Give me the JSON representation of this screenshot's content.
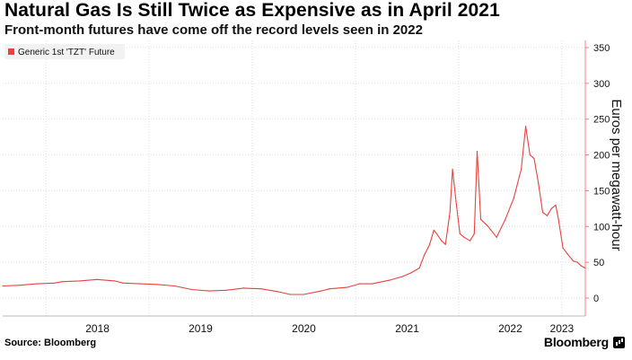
{
  "header": {
    "title": "Natural Gas Is Still Twice as Expensive as in April 2021",
    "subtitle": "Front-month futures have come off the record levels seen in 2022"
  },
  "footer": {
    "source": "Source: Bloomberg",
    "brand": "Bloomberg"
  },
  "colors": {
    "series": "#e8423f",
    "axis_right": "#f08080",
    "grid": "#dddddd",
    "text": "#000000"
  },
  "chart_data": {
    "type": "line",
    "title": "Natural Gas Is Still Twice as Expensive as in April 2021",
    "subtitle": "Front-month futures have come off the record levels seen in 2022",
    "ylabel": "Euros per megawatt-hour",
    "xlabel": "",
    "ylim": [
      -10,
      360
    ],
    "xlim": [
      "2017-08-01",
      "2023-03-25"
    ],
    "yticks": [
      0,
      50,
      100,
      150,
      200,
      250,
      300,
      350
    ],
    "xticks": [
      {
        "date": "2018-01-01",
        "label": "2018"
      },
      {
        "date": "2019-01-01",
        "label": "2019"
      },
      {
        "date": "2020-01-01",
        "label": "2020"
      },
      {
        "date": "2021-01-01",
        "label": "2021"
      },
      {
        "date": "2022-01-01",
        "label": "2022"
      },
      {
        "date": "2023-01-01",
        "label": "2023"
      }
    ],
    "grid": true,
    "y_axis_side": "right",
    "legend": {
      "position": "top-left"
    },
    "series": [
      {
        "name": "Generic 1st 'TZT' Future",
        "x": [
          "2017-08-01",
          "2017-10-01",
          "2017-12-01",
          "2018-02-01",
          "2018-03-01",
          "2018-05-01",
          "2018-07-01",
          "2018-09-01",
          "2018-10-01",
          "2018-12-01",
          "2019-02-01",
          "2019-04-01",
          "2019-06-01",
          "2019-08-01",
          "2019-10-01",
          "2019-12-01",
          "2020-02-01",
          "2020-04-01",
          "2020-05-15",
          "2020-07-01",
          "2020-09-01",
          "2020-10-01",
          "2020-12-01",
          "2021-01-15",
          "2021-03-01",
          "2021-05-01",
          "2021-06-15",
          "2021-07-15",
          "2021-08-15",
          "2021-09-01",
          "2021-09-20",
          "2021-10-05",
          "2021-10-15",
          "2021-11-01",
          "2021-11-15",
          "2021-12-01",
          "2021-12-10",
          "2021-12-21",
          "2022-01-05",
          "2022-01-20",
          "2022-02-10",
          "2022-02-25",
          "2022-03-07",
          "2022-03-20",
          "2022-04-15",
          "2022-05-15",
          "2022-06-15",
          "2022-07-15",
          "2022-08-10",
          "2022-08-26",
          "2022-09-10",
          "2022-09-25",
          "2022-10-10",
          "2022-10-25",
          "2022-11-10",
          "2022-11-25",
          "2022-12-10",
          "2022-12-20",
          "2023-01-05",
          "2023-01-20",
          "2023-02-10",
          "2023-02-25",
          "2023-03-10",
          "2023-03-24"
        ],
        "values": [
          17,
          18,
          20,
          21,
          23,
          24,
          26,
          24,
          21,
          20,
          19,
          17,
          12,
          10,
          11,
          14,
          13,
          9,
          5,
          5,
          10,
          13,
          15,
          20,
          20,
          25,
          30,
          35,
          42,
          60,
          75,
          95,
          90,
          80,
          75,
          120,
          180,
          140,
          90,
          85,
          80,
          90,
          205,
          110,
          100,
          85,
          110,
          140,
          180,
          240,
          200,
          195,
          160,
          120,
          115,
          125,
          130,
          110,
          70,
          62,
          52,
          50,
          45,
          42
        ]
      }
    ]
  }
}
